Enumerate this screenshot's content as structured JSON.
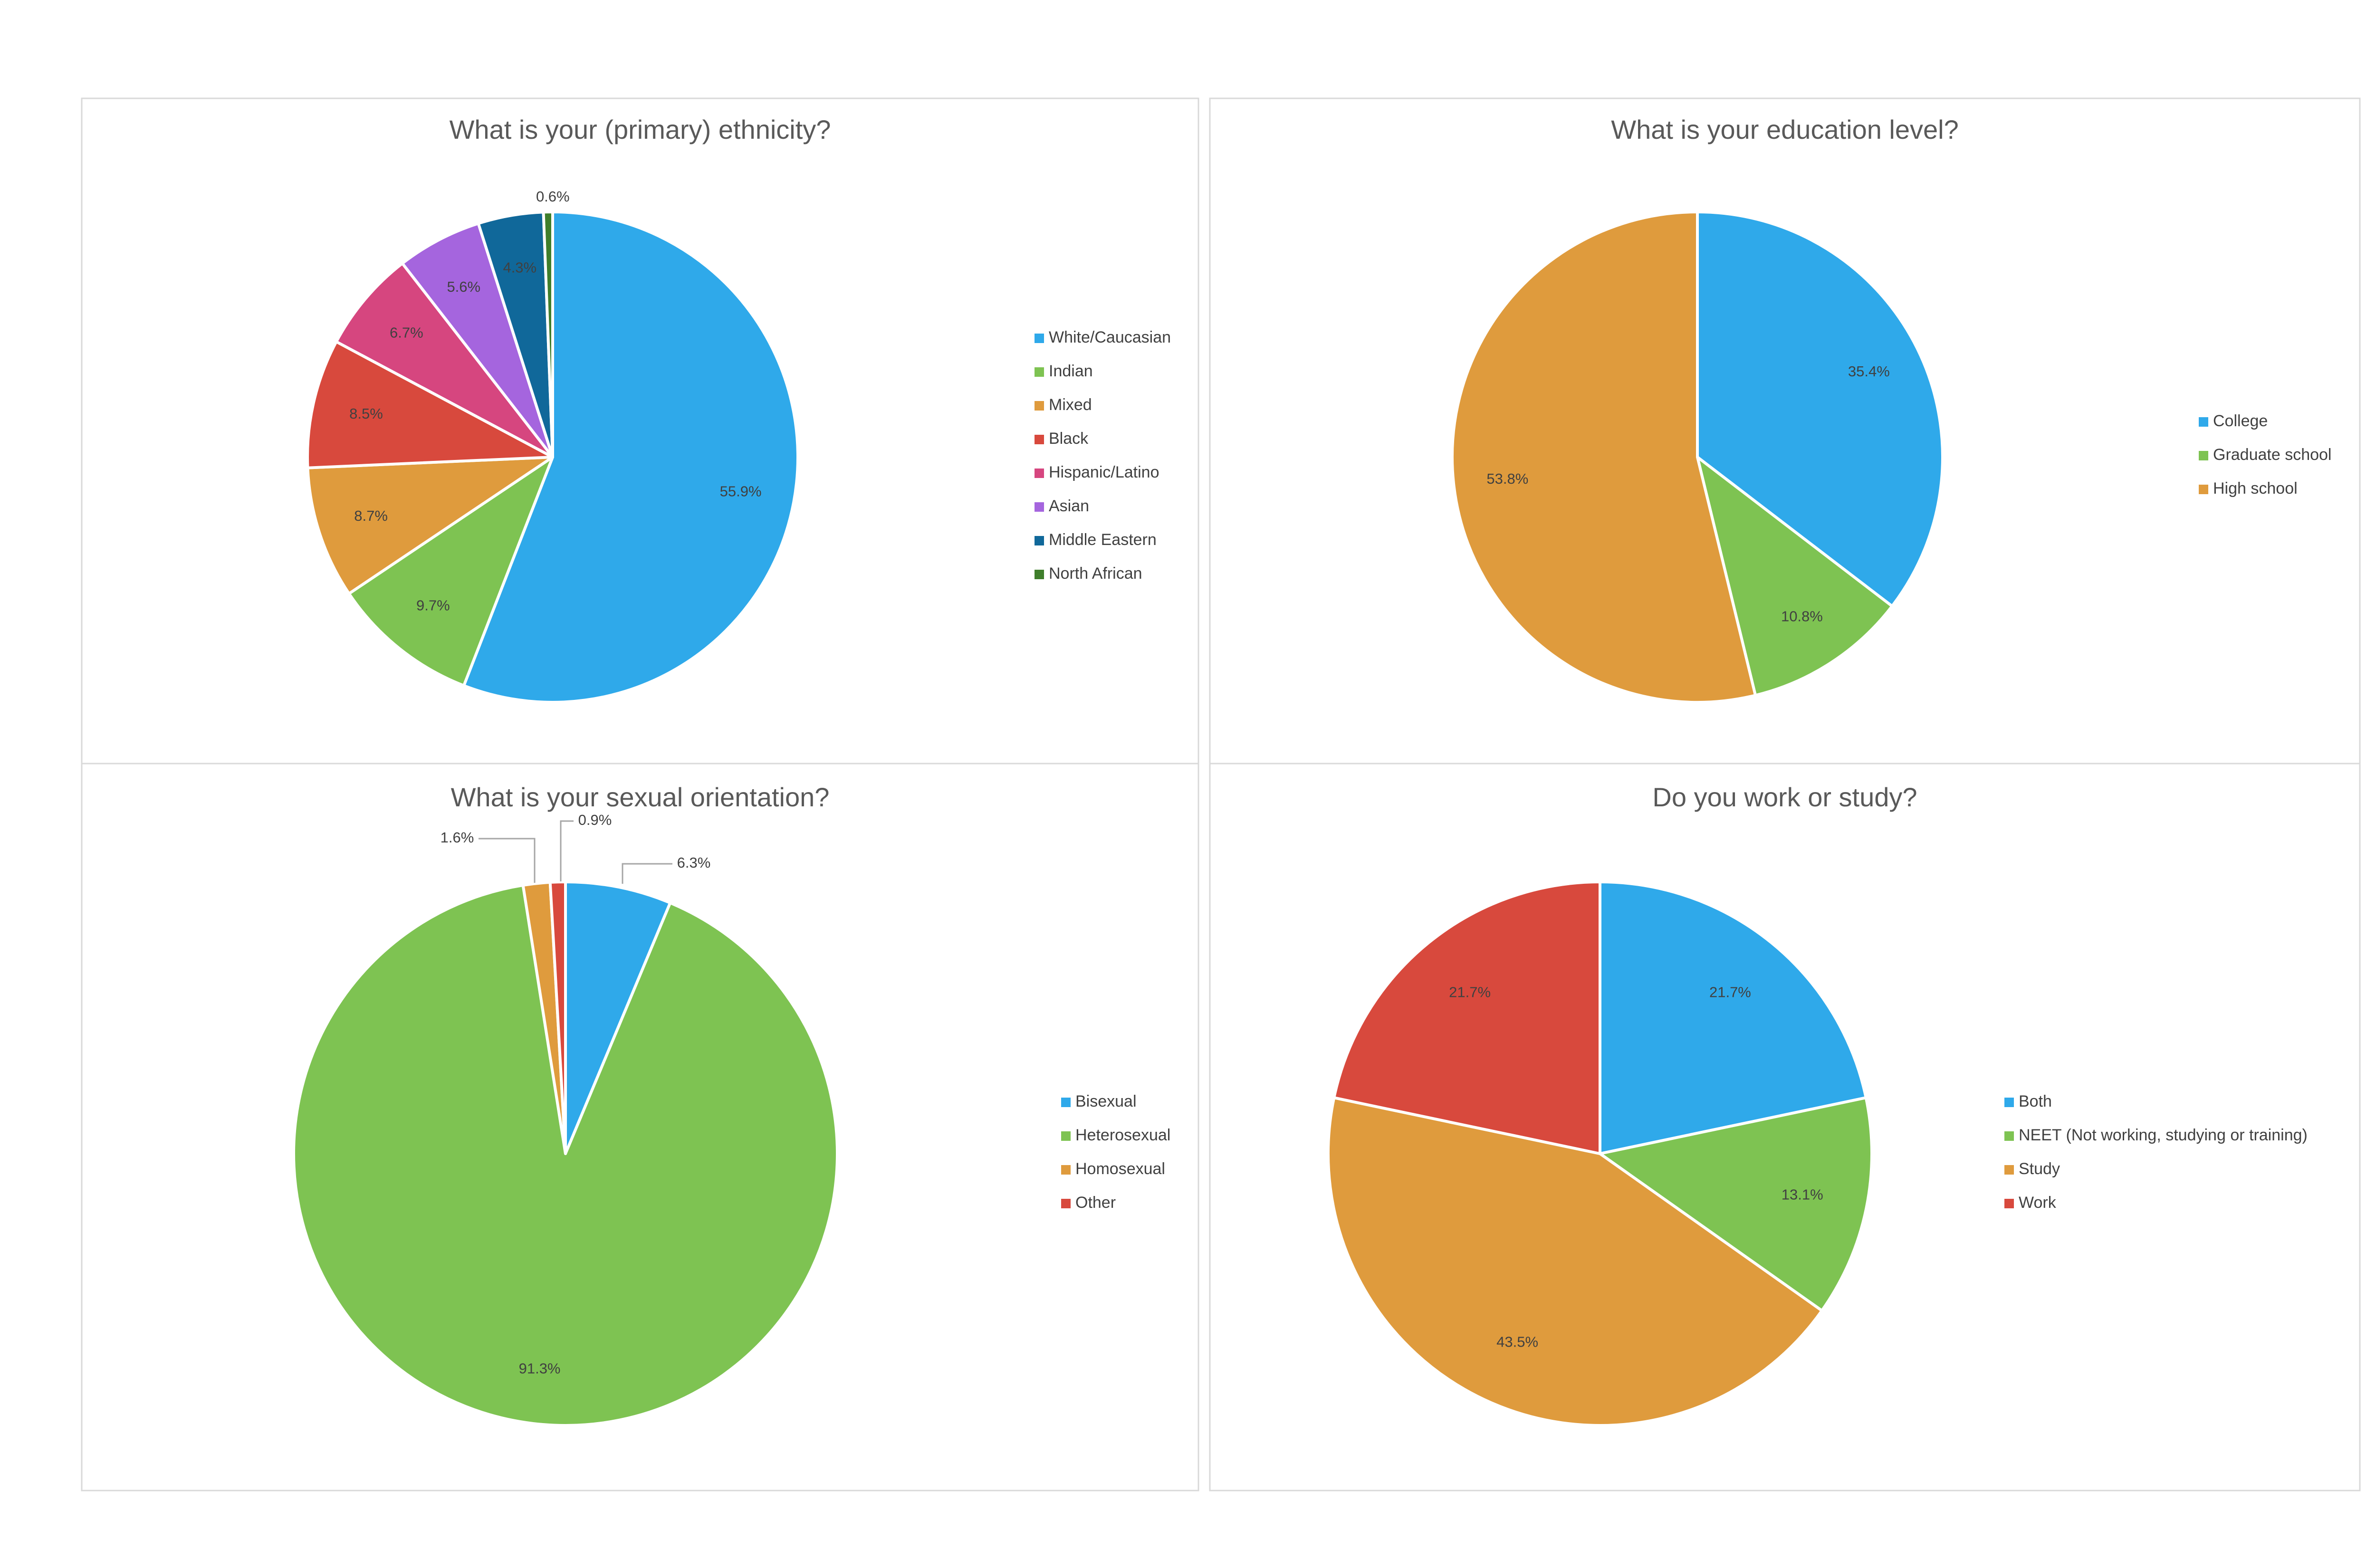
{
  "colors": {
    "blue": "#2fa9ea",
    "green": "#7ec352",
    "orange": "#df9b3d",
    "red": "#d8493d",
    "pink": "#d6467f",
    "purple": "#a565de",
    "navy": "#10689a",
    "darkgreen": "#3f7e2b",
    "frame": "#d9d9d9"
  },
  "chart_data": [
    {
      "type": "pie",
      "title": "What is your (primary) ethnicity?",
      "legend_position": "right",
      "series": [
        {
          "name": "White/Caucasian",
          "value": 55.9,
          "label": "55.9%",
          "color": "#2fa9ea"
        },
        {
          "name": "Indian",
          "value": 9.7,
          "label": "9.7%",
          "color": "#7ec352"
        },
        {
          "name": "Mixed",
          "value": 8.7,
          "label": "8.7%",
          "color": "#df9b3d"
        },
        {
          "name": "Black",
          "value": 8.5,
          "label": "8.5%",
          "color": "#d8493d"
        },
        {
          "name": "Hispanic/Latino",
          "value": 6.7,
          "label": "6.7%",
          "color": "#d6467f"
        },
        {
          "name": "Asian",
          "value": 5.6,
          "label": "5.6%",
          "color": "#a565de"
        },
        {
          "name": "Middle Eastern",
          "value": 4.3,
          "label": "4.3%",
          "color": "#10689a"
        },
        {
          "name": "North African",
          "value": 0.6,
          "label": "0.6%",
          "color": "#3f7e2b"
        }
      ]
    },
    {
      "type": "pie",
      "title": "What is your education level?",
      "legend_position": "right",
      "series": [
        {
          "name": "College",
          "value": 35.4,
          "label": "35.4%",
          "color": "#2fa9ea"
        },
        {
          "name": "Graduate school",
          "value": 10.8,
          "label": "10.8%",
          "color": "#7ec352"
        },
        {
          "name": "High school",
          "value": 53.8,
          "label": "53.8%",
          "color": "#df9b3d"
        }
      ]
    },
    {
      "type": "pie",
      "title": "What is your sexual orientation?",
      "legend_position": "right",
      "series": [
        {
          "name": "Bisexual",
          "value": 6.3,
          "label": "6.3%",
          "color": "#2fa9ea"
        },
        {
          "name": "Heterosexual",
          "value": 91.3,
          "label": "91.3%",
          "color": "#7ec352"
        },
        {
          "name": "Homosexual",
          "value": 1.6,
          "label": "1.6%",
          "color": "#df9b3d"
        },
        {
          "name": "Other",
          "value": 0.9,
          "label": "0.9%",
          "color": "#d8493d"
        }
      ]
    },
    {
      "type": "pie",
      "title": "Do you work or study?",
      "legend_position": "right",
      "series": [
        {
          "name": "Both",
          "value": 21.7,
          "label": "21.7%",
          "color": "#2fa9ea"
        },
        {
          "name": "NEET (Not working, studying or training)",
          "value": 13.1,
          "label": "13.1%",
          "color": "#7ec352"
        },
        {
          "name": "Study",
          "value": 43.5,
          "label": "43.5%",
          "color": "#df9b3d"
        },
        {
          "name": "Work",
          "value": 21.7,
          "label": "21.7%",
          "color": "#d8493d"
        }
      ]
    }
  ]
}
